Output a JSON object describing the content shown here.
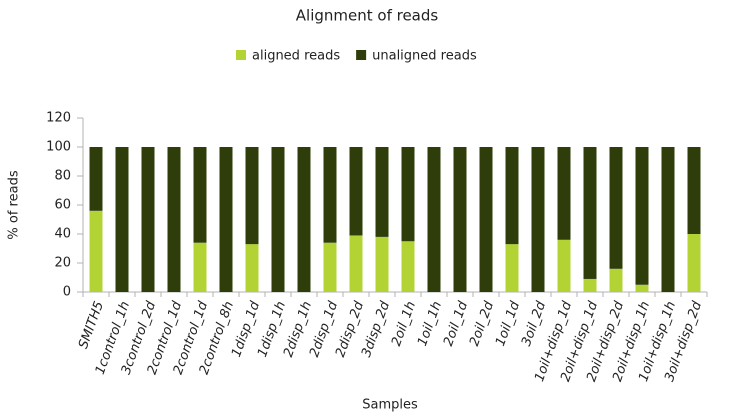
{
  "chart_data": {
    "type": "stacked_bar",
    "title": "Alignment of reads",
    "x_label": "Samples",
    "y_label": "% of reads",
    "categories": [
      "SMITH5",
      "1control_1h",
      "3control_2d",
      "2control_1d",
      "2control_1d",
      "2control_8h",
      "1disp_1d",
      "1disp_1h",
      "2disp_1h",
      "2disp_1d",
      "2disp_2d",
      "3disp_2d",
      "2oil_1h",
      "1oil_1h",
      "2oil_1d",
      "2oil_2d",
      "1oil_1d",
      "3oil_2d",
      "1oil+disp_1d",
      "2oil+disp_1d",
      "2oil+disp_2d",
      "2oil+disp_1h",
      "1oil+disp_1h",
      "3oil+disp_2d"
    ],
    "series": [
      {
        "name": "aligned reads",
        "color": "#b3d334",
        "values": [
          56,
          0,
          0,
          0,
          34,
          0,
          33,
          0,
          0,
          34,
          39,
          38,
          35,
          0,
          0,
          0,
          33,
          0,
          36,
          9,
          16,
          5,
          0,
          40
        ]
      },
      {
        "name": "unaligned reads",
        "color": "#2e3d0a",
        "values": [
          44,
          100,
          100,
          100,
          66,
          100,
          67,
          100,
          100,
          66,
          61,
          62,
          65,
          100,
          100,
          100,
          67,
          100,
          64,
          91,
          84,
          95,
          100,
          60
        ]
      }
    ],
    "ylim": [
      0,
      120
    ],
    "yticks": [
      0,
      20,
      40,
      60,
      80,
      100,
      120
    ],
    "legend": "top"
  }
}
